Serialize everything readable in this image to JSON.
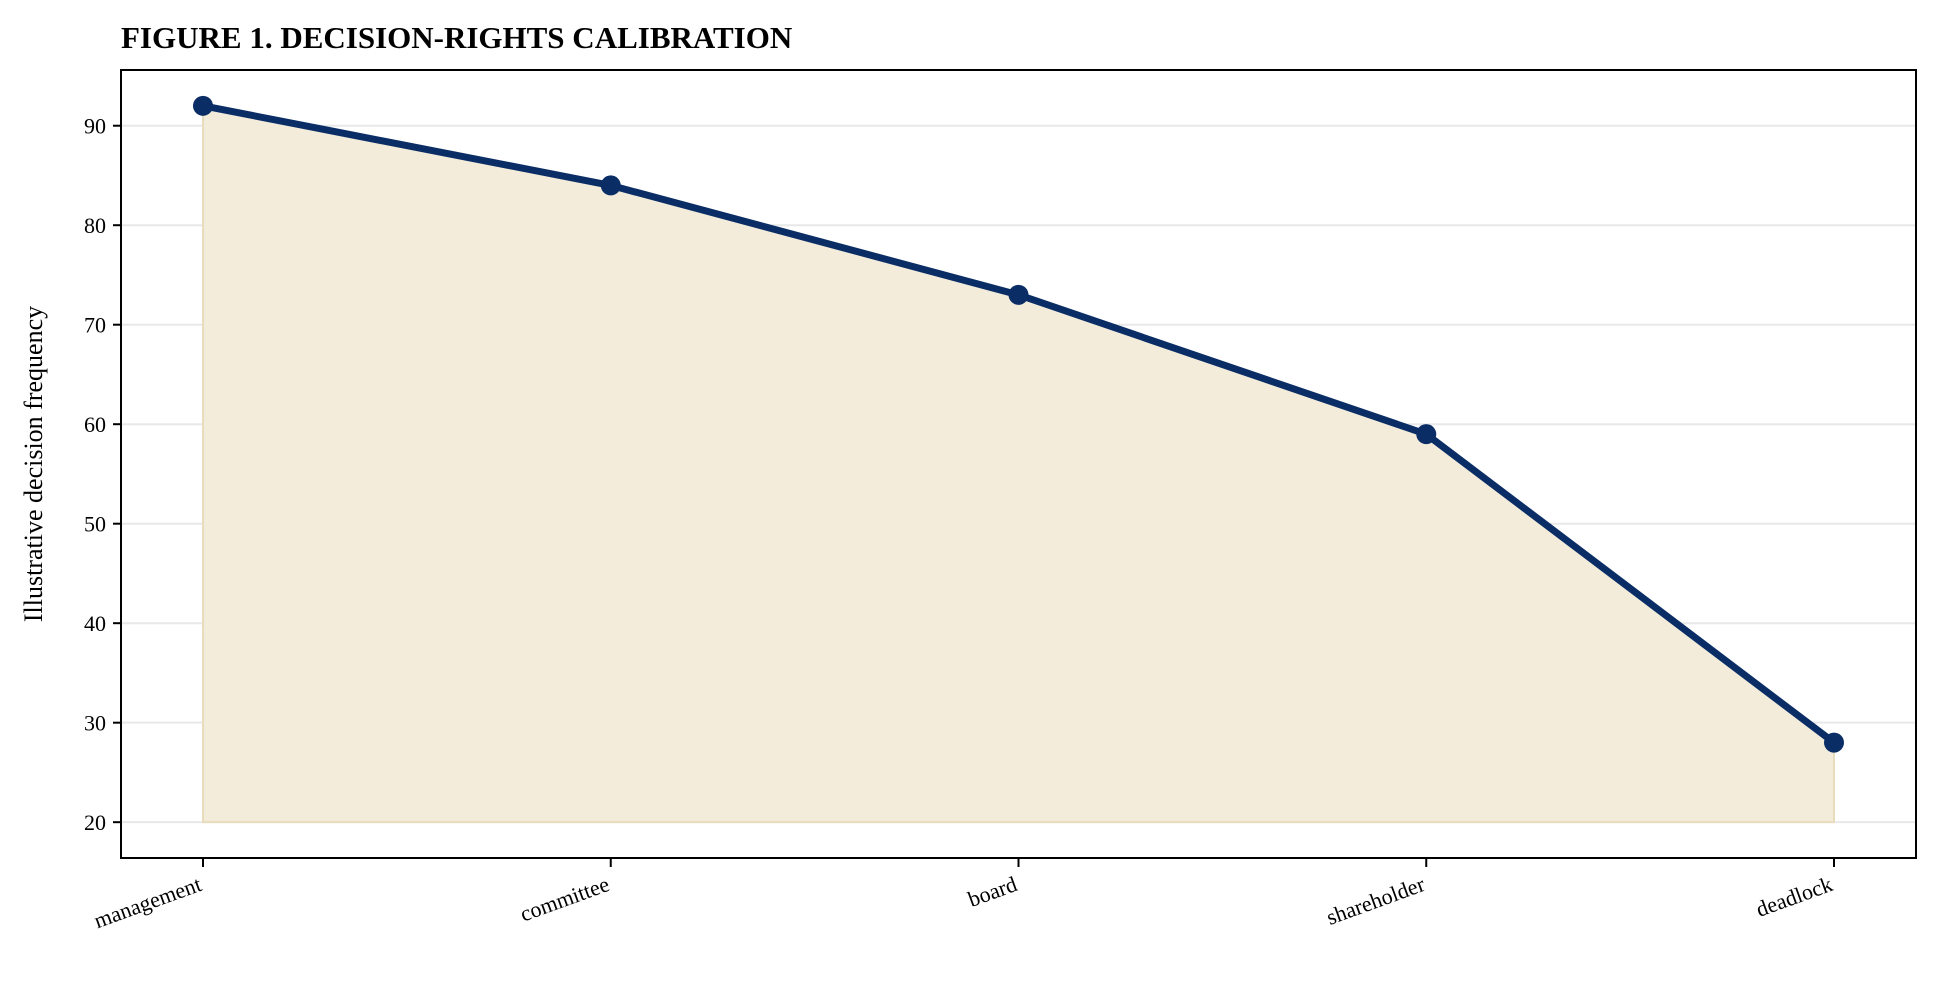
{
  "chart_data": {
    "type": "area",
    "title": "FIGURE 1. DECISION-RIGHTS CALIBRATION",
    "xlabel": "",
    "ylabel": "Illustrative decision frequency",
    "categories": [
      "management",
      "committee",
      "board",
      "shareholder",
      "deadlock"
    ],
    "series": [
      {
        "values": [
          92,
          84,
          73,
          59,
          28
        ]
      }
    ],
    "fill_baseline": 20,
    "ylim": [
      16.4,
      95.6
    ],
    "yticks": [
      20,
      30,
      40,
      50,
      60,
      70,
      80,
      90
    ],
    "grid": "y-only",
    "legend": "none",
    "colors": {
      "line": "#0b2d66",
      "fill": "#f3ecdb",
      "fill_edge": "#e9dcbd",
      "grid": "#e8e8e8",
      "axis": "#000000"
    }
  }
}
